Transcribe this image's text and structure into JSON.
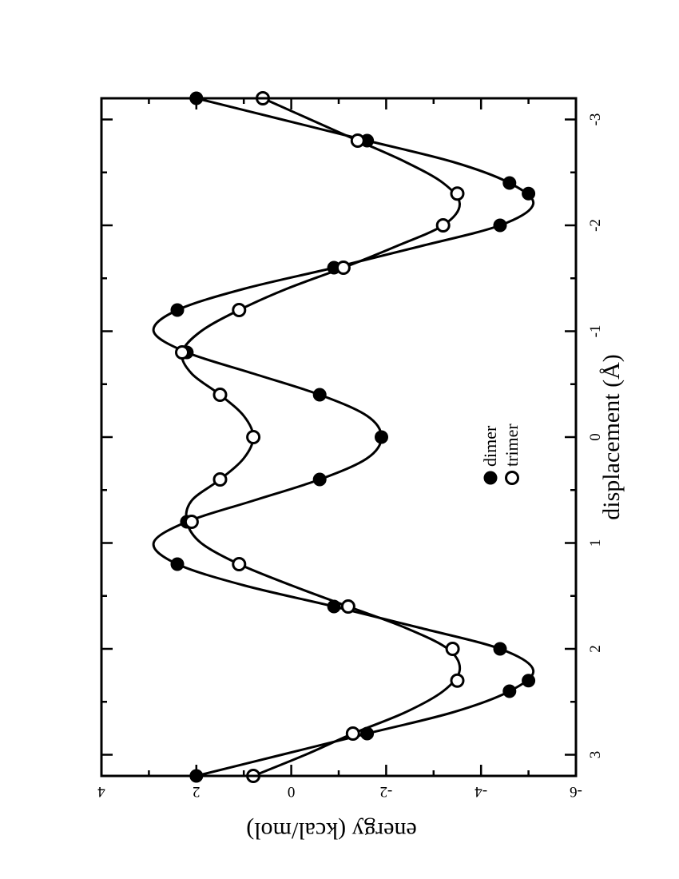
{
  "chart_data": {
    "type": "line",
    "orientation": "rotated 90 degrees counter-clockwise (portrait page)",
    "xlabel": "displacement (Å)",
    "ylabel": "energy (kcal/mol)",
    "xlim": [
      -3.2,
      3.2
    ],
    "ylim": [
      -6,
      4
    ],
    "xticks": [
      -3,
      -2,
      -1,
      0,
      1,
      2,
      3
    ],
    "yticks": [
      4,
      2,
      0,
      -2,
      -4,
      -6
    ],
    "xtick_labels": [
      "-3",
      "-2",
      "-1",
      "0",
      "1",
      "2",
      "3"
    ],
    "ytick_labels": [
      "4",
      "2",
      "0",
      "-2",
      "-4",
      "-6"
    ],
    "grid": false,
    "legend_position": "lower-center",
    "series": [
      {
        "name": "dimer",
        "marker": "filled-circle",
        "points": [
          [
            -3.2,
            2.0
          ],
          [
            -2.8,
            -1.6
          ],
          [
            -2.4,
            -4.6
          ],
          [
            -2.3,
            -5.0
          ],
          [
            -2.0,
            -4.4
          ],
          [
            -1.6,
            -0.9
          ],
          [
            -1.2,
            2.4
          ],
          [
            -0.8,
            2.2
          ],
          [
            -0.4,
            -0.6
          ],
          [
            0.0,
            -1.9
          ],
          [
            0.4,
            -0.6
          ],
          [
            0.8,
            2.2
          ],
          [
            1.2,
            2.4
          ],
          [
            1.6,
            -0.9
          ],
          [
            2.0,
            -4.4
          ],
          [
            2.3,
            -5.0
          ],
          [
            2.4,
            -4.6
          ],
          [
            2.8,
            -1.6
          ],
          [
            3.2,
            2.0
          ]
        ]
      },
      {
        "name": "trimer",
        "marker": "open-circle",
        "points": [
          [
            -3.2,
            0.6
          ],
          [
            -2.8,
            -1.4
          ],
          [
            -2.3,
            -3.5
          ],
          [
            -2.0,
            -3.2
          ],
          [
            -1.6,
            -1.1
          ],
          [
            -1.2,
            1.1
          ],
          [
            -0.8,
            2.3
          ],
          [
            -0.4,
            1.5
          ],
          [
            0.0,
            0.8
          ],
          [
            0.4,
            1.5
          ],
          [
            0.8,
            2.1
          ],
          [
            1.2,
            1.1
          ],
          [
            1.6,
            -1.2
          ],
          [
            2.0,
            -3.4
          ],
          [
            2.3,
            -3.5
          ],
          [
            2.8,
            -1.3
          ],
          [
            3.2,
            0.8
          ]
        ]
      }
    ],
    "curves": [
      {
        "fits": "dimer",
        "points": [
          [
            -3.2,
            2.0
          ],
          [
            -3.0,
            0.2
          ],
          [
            -2.8,
            -1.6
          ],
          [
            -2.6,
            -3.4
          ],
          [
            -2.4,
            -4.6
          ],
          [
            -2.2,
            -5.1
          ],
          [
            -2.0,
            -4.4
          ],
          [
            -1.8,
            -2.7
          ],
          [
            -1.6,
            -0.9
          ],
          [
            -1.4,
            1.0
          ],
          [
            -1.2,
            2.4
          ],
          [
            -1.0,
            2.9
          ],
          [
            -0.8,
            2.2
          ],
          [
            -0.6,
            0.8
          ],
          [
            -0.4,
            -0.6
          ],
          [
            -0.2,
            -1.6
          ],
          [
            0.0,
            -1.9
          ],
          [
            0.2,
            -1.6
          ],
          [
            0.4,
            -0.6
          ],
          [
            0.6,
            0.8
          ],
          [
            0.8,
            2.2
          ],
          [
            1.0,
            2.9
          ],
          [
            1.2,
            2.4
          ],
          [
            1.4,
            1.0
          ],
          [
            1.6,
            -0.9
          ],
          [
            1.8,
            -2.7
          ],
          [
            2.0,
            -4.4
          ],
          [
            2.2,
            -5.1
          ],
          [
            2.4,
            -4.6
          ],
          [
            2.6,
            -3.4
          ],
          [
            2.8,
            -1.6
          ],
          [
            3.0,
            0.2
          ],
          [
            3.2,
            2.0
          ]
        ]
      },
      {
        "fits": "trimer",
        "points": [
          [
            -3.2,
            0.6
          ],
          [
            -3.0,
            -0.4
          ],
          [
            -2.8,
            -1.4
          ],
          [
            -2.6,
            -2.4
          ],
          [
            -2.4,
            -3.2
          ],
          [
            -2.2,
            -3.55
          ],
          [
            -2.0,
            -3.2
          ],
          [
            -1.8,
            -2.2
          ],
          [
            -1.6,
            -1.1
          ],
          [
            -1.4,
            0.1
          ],
          [
            -1.2,
            1.1
          ],
          [
            -1.0,
            1.9
          ],
          [
            -0.8,
            2.3
          ],
          [
            -0.6,
            2.1
          ],
          [
            -0.4,
            1.5
          ],
          [
            -0.2,
            1.0
          ],
          [
            0.0,
            0.8
          ],
          [
            0.2,
            1.0
          ],
          [
            0.4,
            1.5
          ],
          [
            0.6,
            2.1
          ],
          [
            0.8,
            2.2
          ],
          [
            1.0,
            1.9
          ],
          [
            1.2,
            1.1
          ],
          [
            1.4,
            0.0
          ],
          [
            1.6,
            -1.2
          ],
          [
            1.8,
            -2.4
          ],
          [
            2.0,
            -3.3
          ],
          [
            2.2,
            -3.55
          ],
          [
            2.4,
            -3.2
          ],
          [
            2.6,
            -2.4
          ],
          [
            2.8,
            -1.3
          ],
          [
            3.0,
            -0.3
          ],
          [
            3.2,
            0.8
          ]
        ]
      }
    ]
  }
}
